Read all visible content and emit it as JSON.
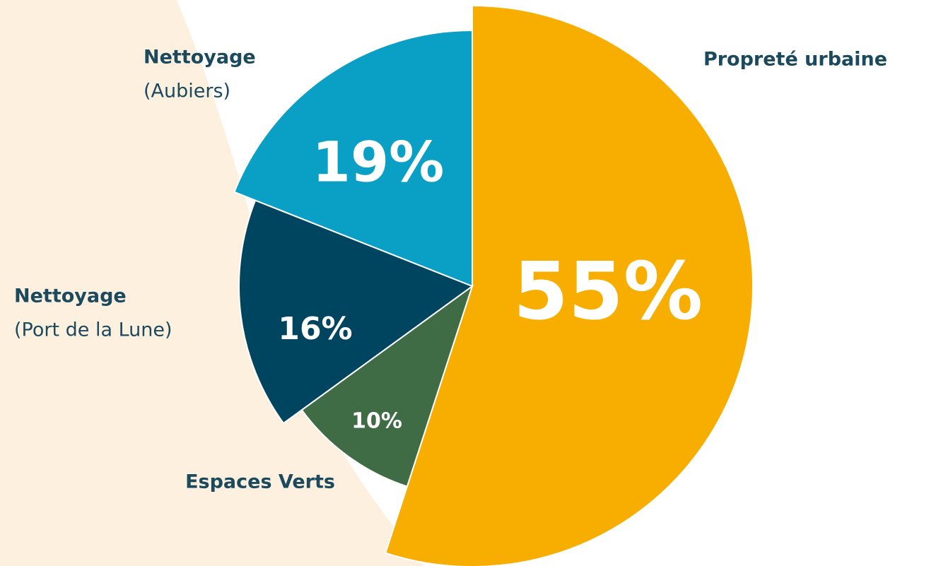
{
  "chart_data": {
    "type": "pie",
    "categories": [
      "Propreté urbaine",
      "Espaces Verts",
      "Nettoyage",
      "Nettoyage"
    ],
    "category_details": [
      null,
      null,
      "(Port de la Lune)",
      "(Aubiers)"
    ],
    "values": [
      55,
      10,
      16,
      19
    ],
    "value_labels": [
      "55%",
      "10%",
      "16%",
      "19%"
    ],
    "colors": [
      "#f7ae00",
      "#3f6b45",
      "#004560",
      "#0aa0c6"
    ]
  }
}
